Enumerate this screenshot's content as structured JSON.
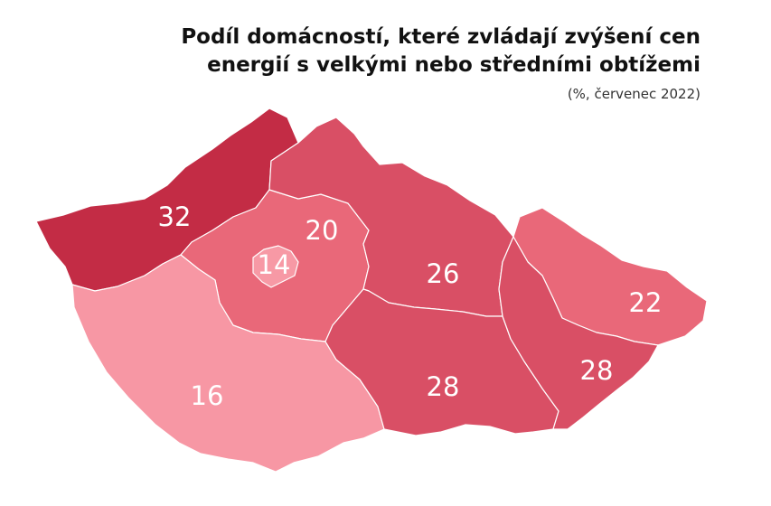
{
  "title": {
    "line1": "Podíl domácností, které zvládají zvýšení cen",
    "line2": "energií s velkými nebo středními obtížemi",
    "subtitle": "(%, červenec 2022)"
  },
  "colors": {
    "bucket_12_18": "#f797a4",
    "bucket_19_21": "#e96879",
    "bucket_22_25": "#e96879",
    "bucket_26_29": "#d94f65",
    "bucket_30_plus": "#c32c45",
    "capital": "#f799a5"
  },
  "chart_data": {
    "type": "choropleth",
    "unit": "%",
    "regions": [
      {
        "value": 32,
        "color": "#c32c45"
      },
      {
        "value": 20,
        "color": "#e96879"
      },
      {
        "value": 14,
        "color": "#f799a5"
      },
      {
        "value": 26,
        "color": "#d94f65"
      },
      {
        "value": 22,
        "color": "#e96879"
      },
      {
        "value": 16,
        "color": "#f797a4"
      },
      {
        "value": 28,
        "color": "#d94f65"
      },
      {
        "value": 28,
        "color": "#d94f65"
      }
    ]
  }
}
